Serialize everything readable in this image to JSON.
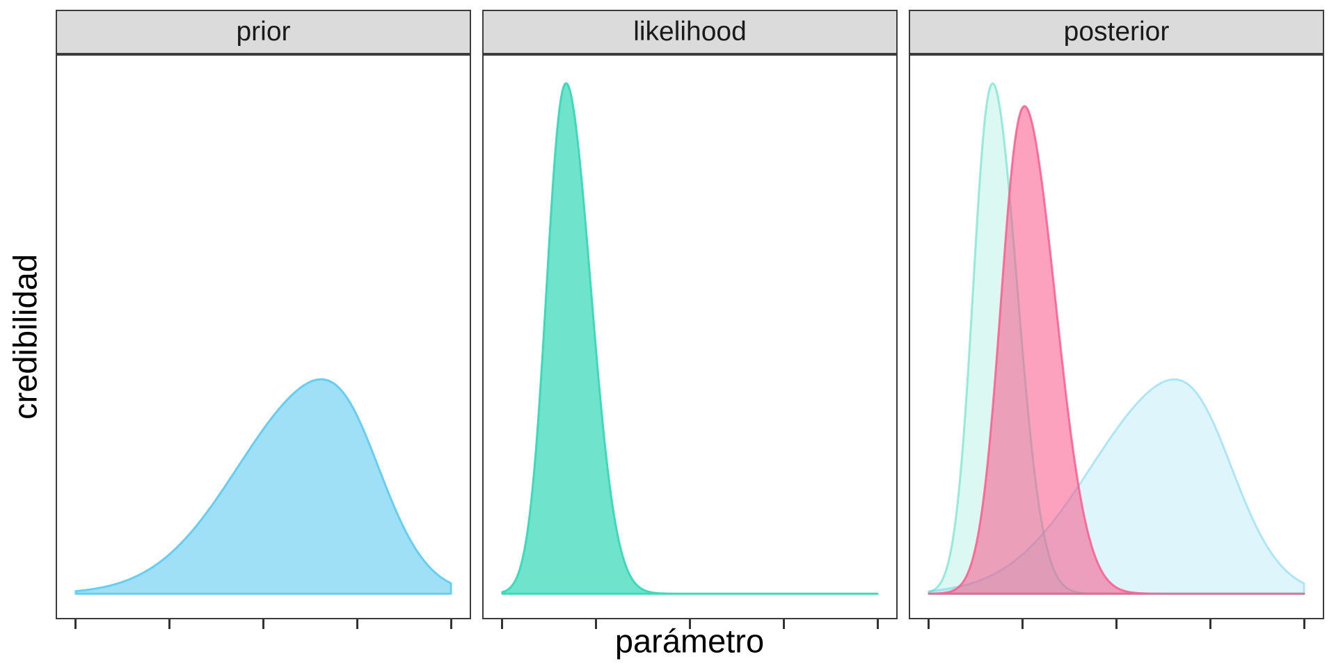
{
  "figure": {
    "y_axis_label": "credibilidad",
    "x_axis_label": "parámetro",
    "background_color": "#FFFFFF",
    "panel_border_color": "#3C3C3C",
    "strip_fill_color": "#DBDBDB",
    "strip_text_color": "#1A1A1A",
    "tick_color": "#333333"
  },
  "chart_data": {
    "type": "area",
    "subtype": "faceted-density",
    "title": "",
    "xlabel": "parámetro",
    "ylabel": "credibilidad",
    "x_domain": [
      0,
      1
    ],
    "x_breaks": [
      0,
      0.25,
      0.5,
      0.75,
      1
    ],
    "x_tick_labels": [
      "",
      "",
      "",
      "",
      ""
    ],
    "y_tick_labels": [],
    "axis_expansion": 0.05,
    "baseline_frac": 0.957,
    "amplitude_frac": 0.908,
    "grid": "off",
    "legend": "none",
    "facets": [
      {
        "label": "prior",
        "curves": [
          {
            "name": "prior-density",
            "color": "#67CEF3",
            "fill_opacity": 0.63,
            "stroke_opacity": 1.0,
            "mode": 0.654,
            "sigma_left": 0.22,
            "sigma_right": 0.14,
            "height": 0.42
          }
        ]
      },
      {
        "label": "likelihood",
        "curves": [
          {
            "name": "likelihood-density",
            "color": "#3FD9B9",
            "fill_opacity": 0.75,
            "stroke_opacity": 1.0,
            "mode": 0.17,
            "sigma_left": 0.05,
            "sigma_right": 0.066,
            "height": 1.0
          }
        ]
      },
      {
        "label": "posterior",
        "curves": [
          {
            "name": "prior-density-faded",
            "color": "#67CEF3",
            "fill_opacity": 0.21,
            "stroke_opacity": 0.47,
            "mode": 0.654,
            "sigma_left": 0.22,
            "sigma_right": 0.14,
            "height": 0.42
          },
          {
            "name": "likelihood-density-faded",
            "color": "#3FD9B9",
            "fill_opacity": 0.18,
            "stroke_opacity": 0.5,
            "mode": 0.17,
            "sigma_left": 0.05,
            "sigma_right": 0.066,
            "height": 1.0
          },
          {
            "name": "posterior-density",
            "color": "#FA5689",
            "fill_opacity": 0.55,
            "stroke_opacity": 0.8,
            "mode": 0.255,
            "sigma_left": 0.06,
            "sigma_right": 0.083,
            "height": 0.955
          }
        ]
      }
    ]
  }
}
